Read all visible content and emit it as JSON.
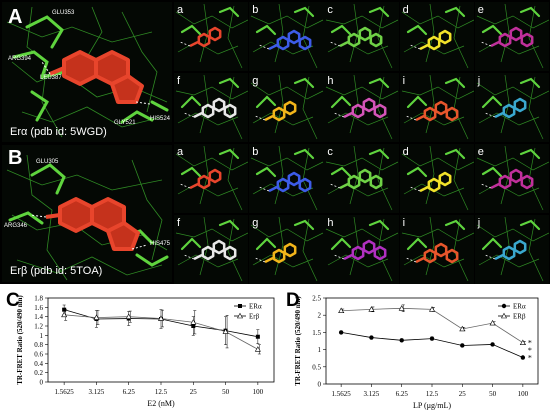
{
  "panel_A": {
    "letter": "A",
    "caption": "Erα (pdb id: 5WGD)",
    "residues": [
      "GLU353",
      "ARG394",
      "LEU387",
      "GLY521",
      "HIS524"
    ],
    "tiles": [
      {
        "label": "a",
        "color": "#e8452c"
      },
      {
        "label": "b",
        "color": "#3d5ce8"
      },
      {
        "label": "c",
        "color": "#6fd246"
      },
      {
        "label": "d",
        "color": "#f2e22a"
      },
      {
        "label": "e",
        "color": "#c0309b"
      },
      {
        "label": "f",
        "color": "#e8e8e8"
      },
      {
        "label": "g",
        "color": "#f2b51a"
      },
      {
        "label": "h",
        "color": "#d454b8"
      },
      {
        "label": "i",
        "color": "#e8562c"
      },
      {
        "label": "j",
        "color": "#3aa8cf"
      }
    ]
  },
  "panel_B": {
    "letter": "B",
    "caption": "Erβ (pdb id: 5TOA)",
    "residues": [
      "GLU305",
      "ARG346",
      "HIS475"
    ],
    "tiles": [
      {
        "label": "a",
        "color": "#e8452c"
      },
      {
        "label": "b",
        "color": "#3d5ce8"
      },
      {
        "label": "c",
        "color": "#6fd246"
      },
      {
        "label": "d",
        "color": "#f2e22a"
      },
      {
        "label": "e",
        "color": "#c0309b"
      },
      {
        "label": "f",
        "color": "#e8e8e8"
      },
      {
        "label": "g",
        "color": "#f2b51a"
      },
      {
        "label": "h",
        "color": "#b030c0"
      },
      {
        "label": "i",
        "color": "#e8562c"
      },
      {
        "label": "j",
        "color": "#3aa8cf"
      }
    ]
  },
  "chart_data": [
    {
      "panel": "C",
      "type": "line",
      "categories": [
        "1.5625",
        "3.125",
        "6.25",
        "12.5",
        "25",
        "50",
        "100"
      ],
      "xlabel": "E2 (nM)",
      "ylabel": "TR-FRET Ratio (520/490 nm)",
      "ylim": [
        0,
        1.8
      ],
      "yticks": [
        "0",
        "0.2",
        "0.4",
        "0.6",
        "0.8",
        "1",
        "1.2",
        "1.4",
        "1.6",
        "1.8"
      ],
      "legend": "top-right",
      "series": [
        {
          "name": "ERα",
          "marker": "filled-square",
          "values": [
            1.55,
            1.35,
            1.36,
            1.35,
            1.2,
            1.1,
            0.97
          ],
          "errors": [
            0.1,
            0.18,
            0.15,
            0.2,
            0.2,
            0.3,
            0.15
          ]
        },
        {
          "name": "Erβ",
          "marker": "open-triangle",
          "values": [
            1.44,
            1.38,
            1.4,
            1.36,
            1.28,
            1.08,
            0.7
          ],
          "errors": [
            0.12,
            0.15,
            0.12,
            0.18,
            0.25,
            0.35,
            0.1
          ]
        }
      ]
    },
    {
      "panel": "D",
      "type": "line",
      "categories": [
        "1.5625",
        "3.125",
        "6.25",
        "12.5",
        "25",
        "50",
        "100"
      ],
      "xlabel": "LP (μg/mL)",
      "ylabel": "TR-FRET Ratio (520/490 nm)",
      "ylim": [
        0,
        2.5
      ],
      "yticks": [
        "0",
        "0.5",
        "1",
        "1.5",
        "2",
        "2.5"
      ],
      "legend": "top-right",
      "annotation": "*",
      "series": [
        {
          "name": "ERα",
          "marker": "filled-circle",
          "values": [
            1.5,
            1.35,
            1.27,
            1.32,
            1.12,
            1.15,
            0.77
          ],
          "errors": [
            0.04,
            0.04,
            0.04,
            0.05,
            0.04,
            0.04,
            0.03
          ]
        },
        {
          "name": "ERβ",
          "marker": "open-triangle",
          "values": [
            2.13,
            2.17,
            2.2,
            2.17,
            1.6,
            1.77,
            1.2
          ],
          "errors": [
            0.05,
            0.07,
            0.1,
            0.06,
            0.05,
            0.04,
            0.04
          ]
        }
      ]
    }
  ]
}
